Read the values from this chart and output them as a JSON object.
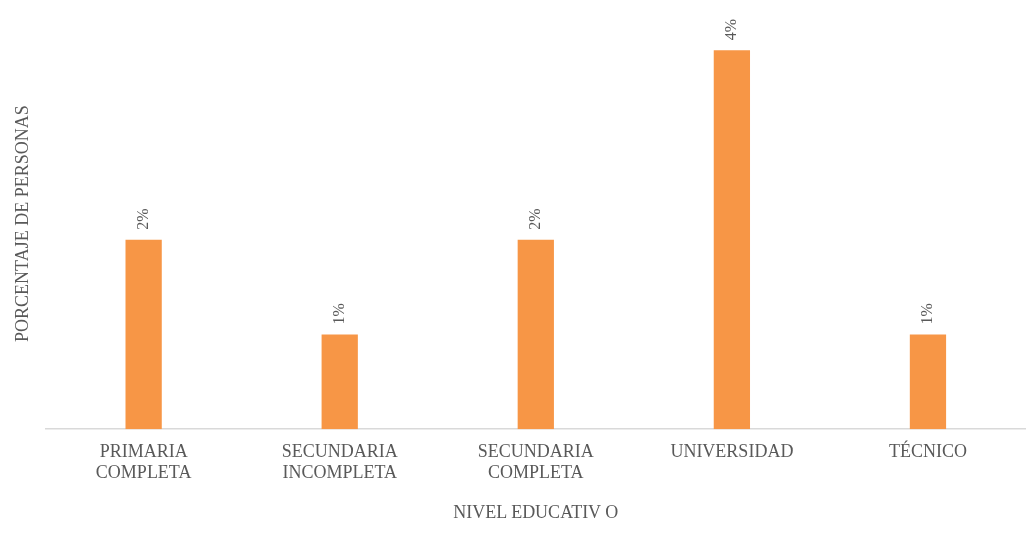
{
  "chart_data": {
    "type": "bar",
    "categories": [
      "PRIMARIA COMPLETA",
      "SECUNDARIA INCOMPLETA",
      "SECUNDARIA COMPLETA",
      "UNIVERSIDAD",
      "TÉCNICO"
    ],
    "values": [
      2,
      1,
      2,
      4,
      1
    ],
    "value_labels": [
      "2%",
      "1%",
      "2%",
      "4%",
      "1%"
    ],
    "color": "#f79646",
    "xlabel": "NIVEL EDUCATIV O",
    "ylabel": "PORCENTAJE DE PERSONAS",
    "grid": false,
    "legend": false
  }
}
